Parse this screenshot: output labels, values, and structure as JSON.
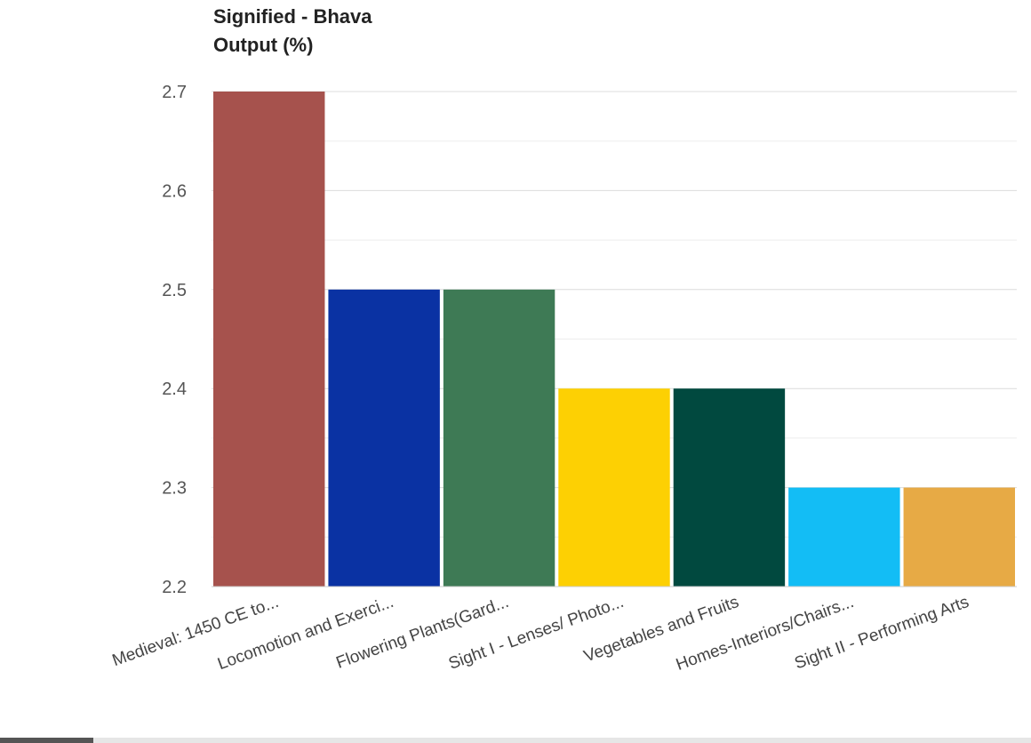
{
  "chart_data": {
    "type": "bar",
    "title_lines": [
      "Signified - Bhava",
      "Output (%)"
    ],
    "categories": [
      "Medieval: 1450 CE to...",
      "Locomotion and Exerci...",
      "Flowering Plants(Gard...",
      "Sight I - Lenses/ Photo...",
      "Vegetables and Fruits",
      "Homes-Interiors/Chairs...",
      "Sight II - Performing Arts"
    ],
    "values": [
      2.7,
      2.5,
      2.5,
      2.4,
      2.4,
      2.3,
      2.3
    ],
    "colors": [
      "#a6524d",
      "#0a32a3",
      "#3e7a55",
      "#fdd003",
      "#01493f",
      "#13bdf5",
      "#e7aa45"
    ],
    "ylim": [
      2.2,
      2.7
    ],
    "yticks": [
      "2.2",
      "2.3",
      "2.4",
      "2.5",
      "2.6",
      "2.7"
    ],
    "grid": true
  }
}
